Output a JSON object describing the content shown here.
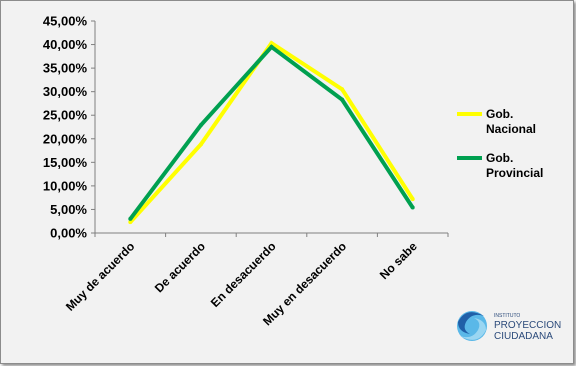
{
  "chart_data": {
    "type": "line",
    "title": "",
    "xlabel": "",
    "ylabel": "",
    "categories": [
      "Muy de acuerdo",
      "De acuerdo",
      "En desacuerdo",
      "Muy en desacuerdo",
      "No sabe"
    ],
    "y_ticks": [
      "0,00%",
      "5,00%",
      "10,00%",
      "15,00%",
      "20,00%",
      "25,00%",
      "30,00%",
      "35,00%",
      "40,00%",
      "45,00%"
    ],
    "ylim": [
      0,
      45
    ],
    "grid": false,
    "legend_position": "right",
    "series": [
      {
        "name": "Gob. Nacional",
        "name_lines": [
          "Gob.",
          "Nacional"
        ],
        "color": "#ffff00",
        "values": [
          2.3,
          18.8,
          40.3,
          30.5,
          7.2
        ]
      },
      {
        "name": "Gob. Provincial",
        "name_lines": [
          "Gob.",
          "Provincial"
        ],
        "color": "#00a050",
        "values": [
          3.0,
          22.9,
          39.5,
          28.3,
          5.4
        ]
      }
    ]
  },
  "logo": {
    "small_text": "INSTITUTO",
    "line1": "PROYECCION",
    "line2": "CIUDADANA"
  }
}
